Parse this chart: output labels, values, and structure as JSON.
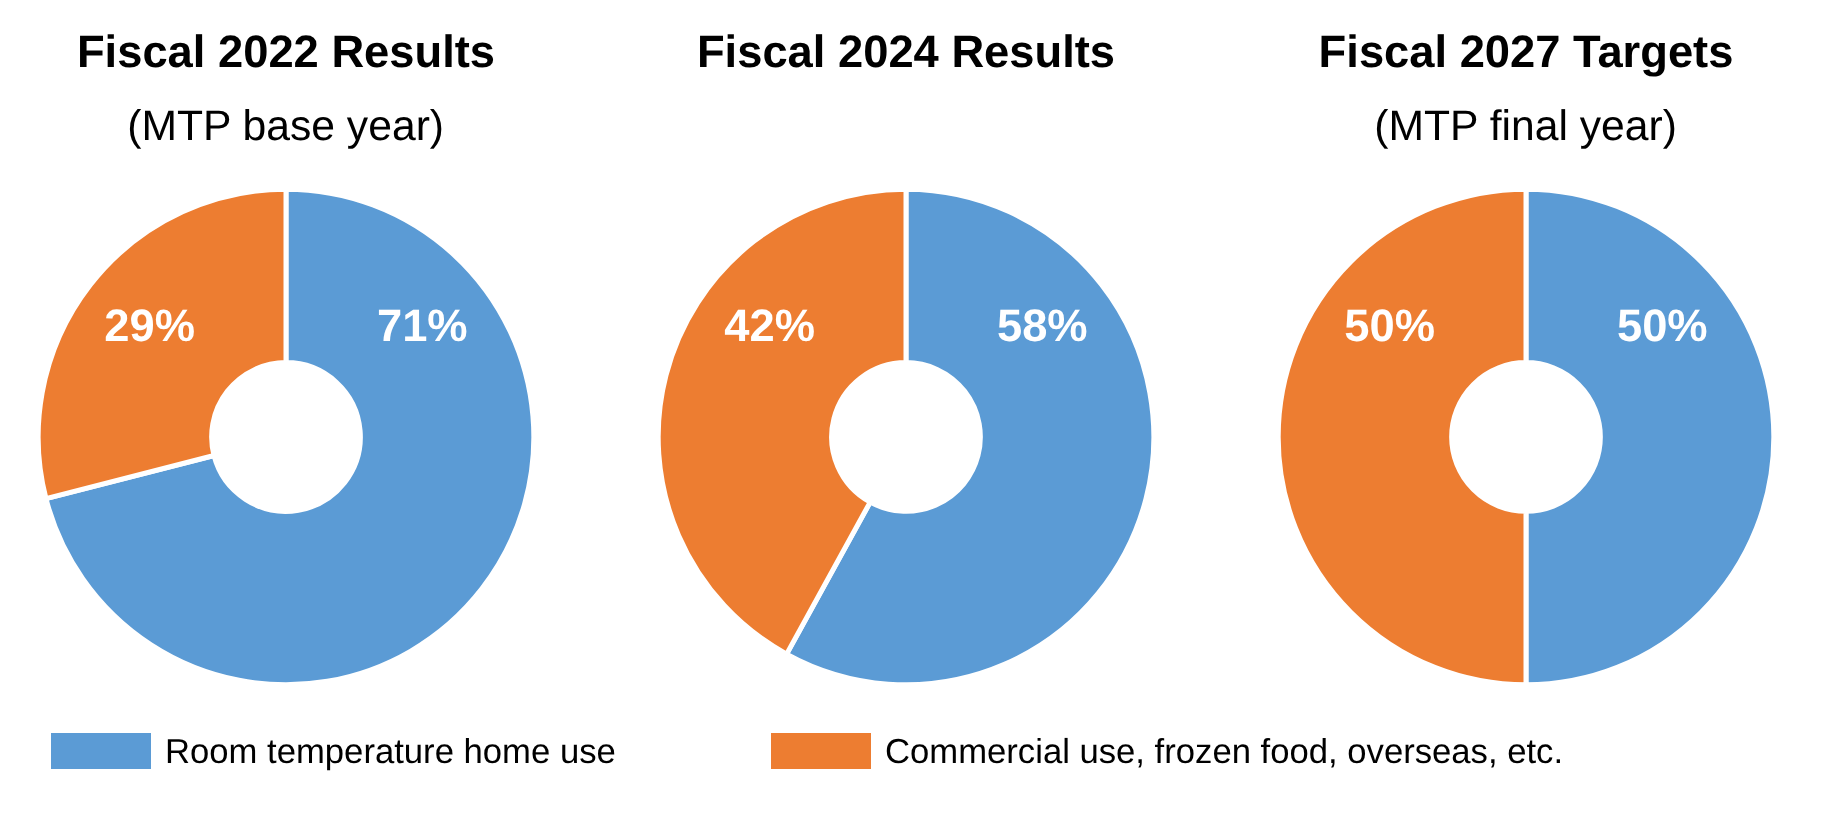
{
  "chart_data": [
    {
      "type": "donut",
      "title": "Fiscal 2022 Results",
      "subtitle": "(MTP base year)",
      "categories": [
        "Room temperature home use",
        "Commercial use, frozen food, overseas, etc."
      ],
      "values": [
        71,
        29
      ],
      "colors": [
        "#5b9bd5",
        "#ed7d31"
      ],
      "value_labels": [
        "71%",
        "29%"
      ],
      "legend": "bottom"
    },
    {
      "type": "donut",
      "title": "Fiscal 2024 Results",
      "categories": [
        null,
        null
      ],
      "values": [
        58,
        42
      ],
      "colors": [
        "#5b9bd5",
        "#ed7d31"
      ],
      "value_labels": [
        "58%",
        "42%"
      ]
    },
    {
      "type": "donut",
      "title": "Fiscal 2027 Targets",
      "subtitle": "(MTP final year)",
      "categories": [
        null,
        null
      ],
      "values": [
        50,
        50
      ],
      "colors": [
        "#5b9bd5",
        "#ed7d31"
      ],
      "value_labels": [
        "50%",
        "50%"
      ]
    }
  ]
}
